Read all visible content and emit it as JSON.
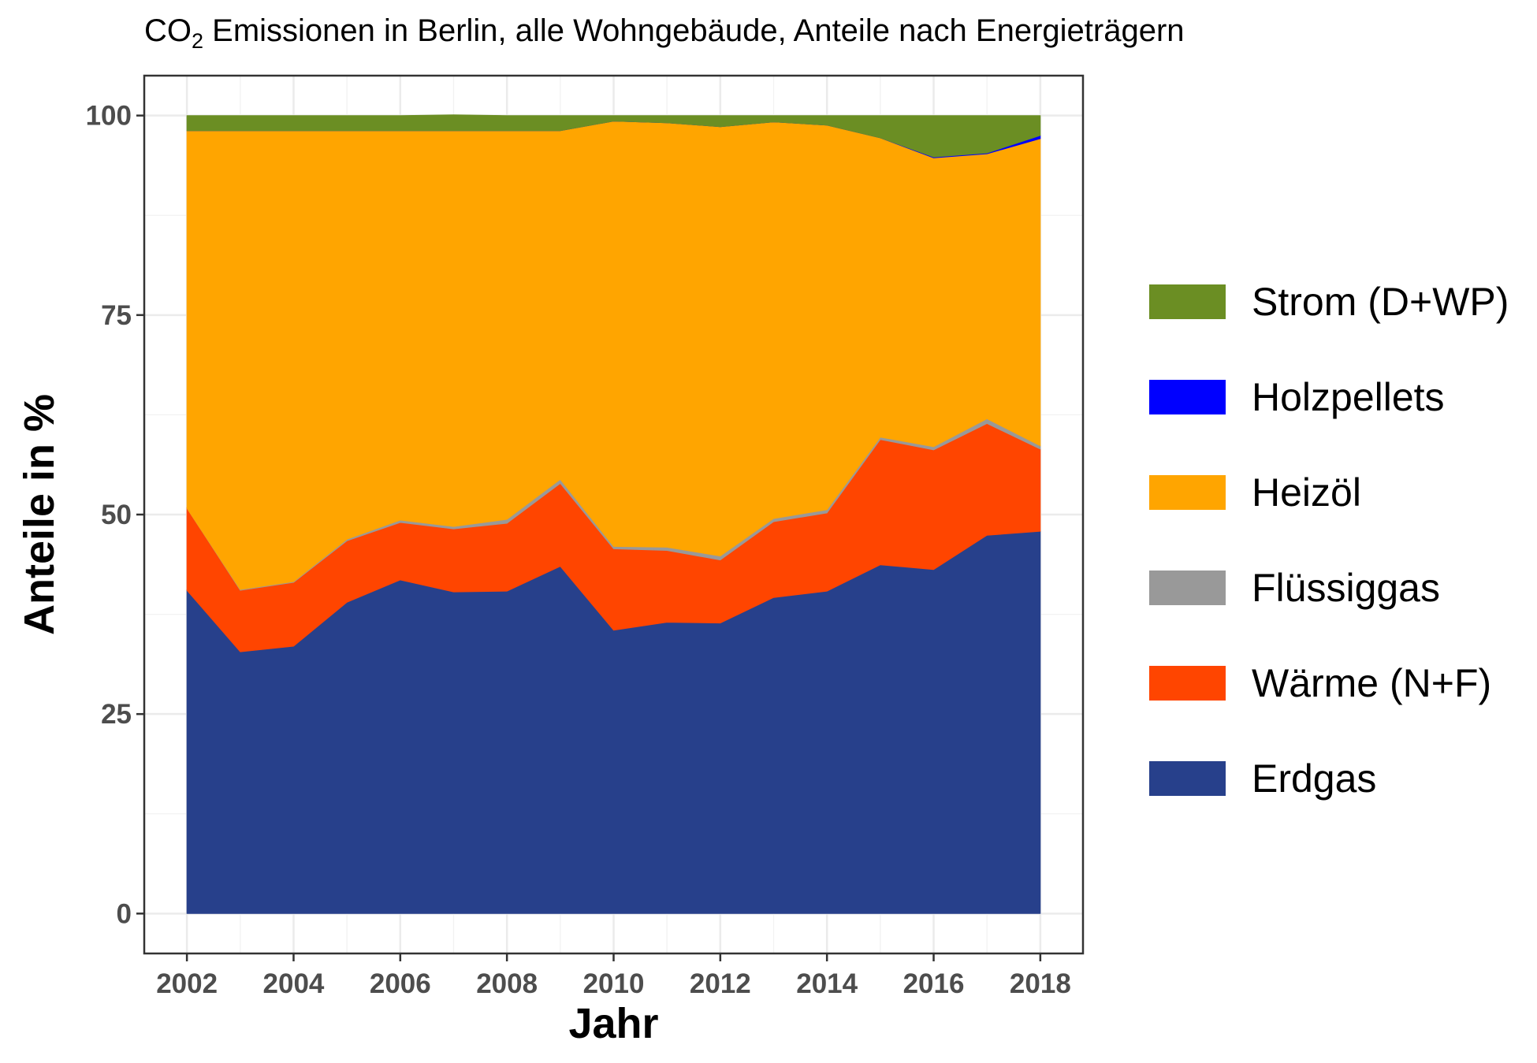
{
  "chart_data": {
    "type": "area",
    "stacked": true,
    "title": "CO",
    "title_subscript": "2",
    "title_rest": " Emissionen in Berlin, alle Wohngebäude, Anteile nach Energieträgern",
    "xlabel": "Jahr",
    "ylabel": "Anteile in %",
    "x": [
      2002,
      2003,
      2004,
      2005,
      2006,
      2007,
      2008,
      2009,
      2010,
      2011,
      2012,
      2013,
      2014,
      2015,
      2016,
      2017,
      2018
    ],
    "xlim": [
      2001.2,
      2018.8
    ],
    "ylim": [
      -5,
      105
    ],
    "x_ticks": [
      2002,
      2004,
      2006,
      2008,
      2010,
      2012,
      2014,
      2016,
      2018
    ],
    "y_ticks": [
      0,
      25,
      50,
      75,
      100
    ],
    "grid": true,
    "legend_position": "right",
    "stack_order": [
      "Erdgas",
      "Wärme (N+F)",
      "Flüssiggas",
      "Heizöl",
      "Holzpellets",
      "Strom (D+WP)"
    ],
    "series": [
      {
        "name": "Erdgas",
        "color": "#27408B",
        "values": [
          40.5,
          32.8,
          33.5,
          39.0,
          41.8,
          40.3,
          40.4,
          43.5,
          35.5,
          36.5,
          36.4,
          39.6,
          40.4,
          43.7,
          43.1,
          47.4,
          47.9
        ]
      },
      {
        "name": "Wärme (N+F)",
        "color": "#FF4500",
        "values": [
          10.3,
          7.7,
          8.0,
          7.7,
          7.2,
          7.9,
          8.5,
          10.4,
          10.2,
          9.0,
          7.9,
          9.5,
          9.8,
          15.7,
          15.0,
          14.0,
          10.3
        ]
      },
      {
        "name": "Flüssiggas",
        "color": "#999999",
        "values": [
          0.0,
          0.1,
          0.1,
          0.2,
          0.3,
          0.3,
          0.5,
          0.5,
          0.3,
          0.4,
          0.5,
          0.4,
          0.4,
          0.3,
          0.4,
          0.6,
          0.4
        ]
      },
      {
        "name": "Heizöl",
        "color": "#FFA500",
        "values": [
          47.3,
          57.5,
          56.5,
          51.2,
          48.8,
          49.6,
          48.7,
          43.7,
          53.3,
          53.2,
          53.8,
          49.7,
          48.2,
          37.5,
          36.2,
          33.2,
          38.5
        ]
      },
      {
        "name": "Holzpellets",
        "color": "#0000FF",
        "values": [
          0.0,
          0.0,
          0.0,
          0.0,
          0.0,
          0.0,
          0.0,
          0.0,
          0.0,
          0.0,
          0.0,
          0.0,
          0.0,
          0.0,
          0.1,
          0.1,
          0.4
        ]
      },
      {
        "name": "Strom (D+WP)",
        "color": "#6B8E23",
        "values": [
          1.9,
          1.9,
          1.9,
          1.9,
          1.9,
          2.0,
          1.9,
          1.9,
          0.7,
          0.9,
          1.4,
          0.8,
          1.2,
          2.8,
          5.2,
          4.7,
          2.5
        ]
      }
    ]
  },
  "legend": {
    "items": [
      {
        "name": "Strom (D+WP)",
        "color": "#6B8E23"
      },
      {
        "name": "Holzpellets",
        "color": "#0000FF"
      },
      {
        "name": "Heizöl",
        "color": "#FFA500"
      },
      {
        "name": "Flüssiggas",
        "color": "#999999"
      },
      {
        "name": "Wärme (N+F)",
        "color": "#FF4500"
      },
      {
        "name": "Erdgas",
        "color": "#27408B"
      }
    ]
  }
}
